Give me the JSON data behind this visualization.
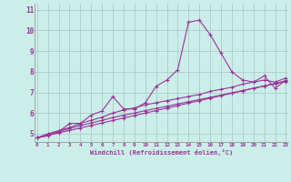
{
  "background_color": "#cceee8",
  "grid_color": "#aacccc",
  "line_color": "#993399",
  "xlabel": "Windchill (Refroidissement éolien,°C)",
  "ylabel_ticks": [
    5,
    6,
    7,
    8,
    9,
    10,
    11
  ],
  "xtick_labels": [
    "0",
    "1",
    "2",
    "3",
    "4",
    "5",
    "6",
    "7",
    "8",
    "9",
    "10",
    "11",
    "12",
    "13",
    "14",
    "15",
    "16",
    "17",
    "18",
    "19",
    "20",
    "21",
    "22",
    "23"
  ],
  "xticks": [
    0,
    1,
    2,
    3,
    4,
    5,
    6,
    7,
    8,
    9,
    10,
    11,
    12,
    13,
    14,
    15,
    16,
    17,
    18,
    19,
    20,
    21,
    22,
    23
  ],
  "xlim": [
    -0.2,
    23.2
  ],
  "ylim": [
    4.6,
    11.3
  ],
  "series": [
    [
      4.8,
      4.9,
      5.1,
      5.5,
      5.5,
      5.9,
      6.1,
      6.8,
      6.2,
      6.2,
      6.5,
      7.3,
      7.6,
      8.1,
      10.4,
      10.5,
      9.8,
      8.9,
      8.0,
      7.6,
      7.5,
      7.8,
      7.2,
      7.6
    ],
    [
      4.8,
      5.0,
      5.15,
      5.3,
      5.5,
      5.65,
      5.8,
      6.0,
      6.15,
      6.25,
      6.4,
      6.5,
      6.6,
      6.7,
      6.8,
      6.9,
      7.05,
      7.15,
      7.25,
      7.4,
      7.5,
      7.6,
      7.5,
      7.7
    ],
    [
      4.8,
      4.95,
      5.1,
      5.25,
      5.4,
      5.52,
      5.65,
      5.78,
      5.9,
      6.0,
      6.12,
      6.22,
      6.33,
      6.44,
      6.55,
      6.65,
      6.76,
      6.87,
      6.98,
      7.09,
      7.2,
      7.31,
      7.42,
      7.53
    ],
    [
      4.8,
      4.92,
      5.04,
      5.16,
      5.28,
      5.4,
      5.52,
      5.64,
      5.76,
      5.88,
      6.0,
      6.12,
      6.24,
      6.36,
      6.48,
      6.6,
      6.72,
      6.84,
      6.96,
      7.08,
      7.2,
      7.32,
      7.44,
      7.56
    ]
  ]
}
